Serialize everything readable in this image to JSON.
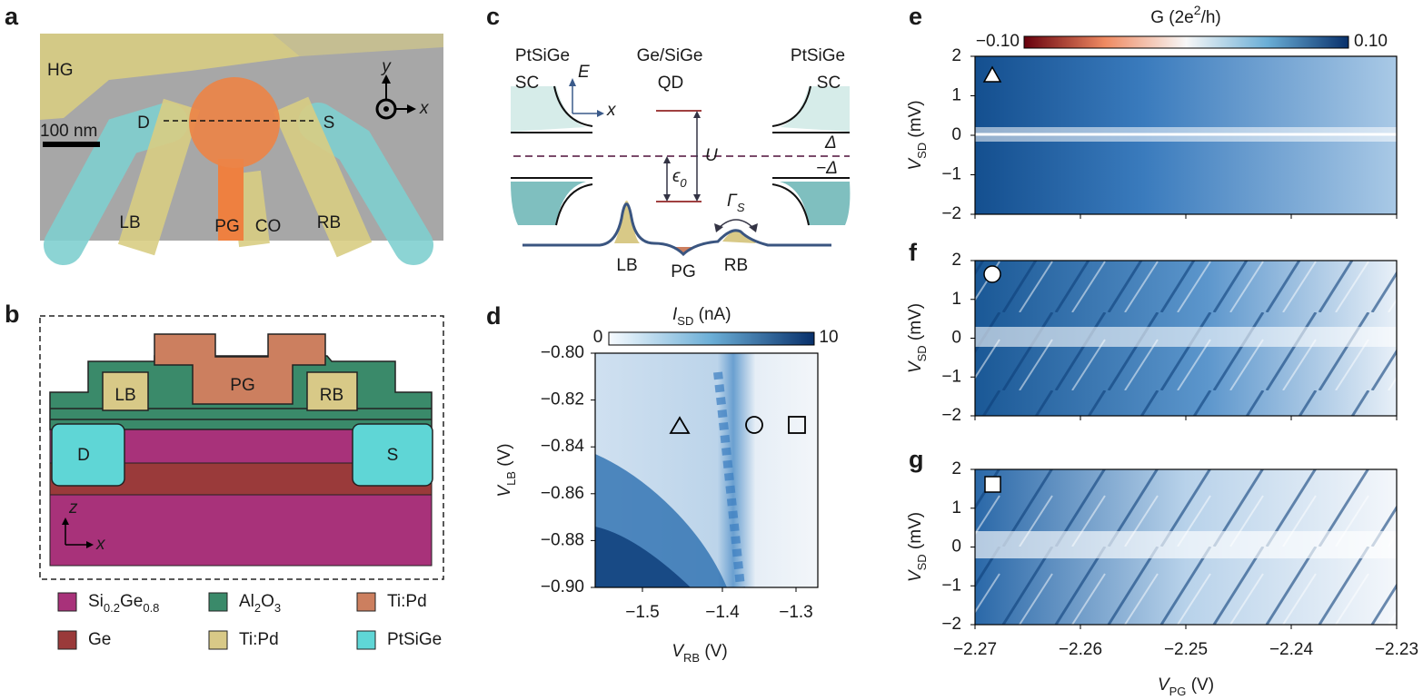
{
  "panel_letters": [
    "a",
    "b",
    "c",
    "d",
    "e",
    "f",
    "g"
  ],
  "a": {
    "labels": {
      "hg": "HG",
      "d": "D",
      "s": "S",
      "lb": "LB",
      "pg": "PG",
      "co": "CO",
      "rb": "RB"
    },
    "scale_bar": "100 nm",
    "axis_y": "y",
    "axis_x": "x"
  },
  "b": {
    "gates": {
      "pg": "PG",
      "lb": "LB",
      "rb": "RB",
      "d": "D",
      "s": "S"
    },
    "axis_z": "z",
    "axis_x": "x",
    "legend": [
      {
        "parts": [
          "Si",
          "0.2",
          "Ge",
          "0.8"
        ],
        "color": "#a8327a"
      },
      {
        "parts": [
          "Al",
          "2",
          "O",
          "3"
        ],
        "color": "#3a8a6a"
      },
      {
        "parts": [
          "Ti:Pd"
        ],
        "color": "#cc7f5f"
      },
      {
        "parts": [
          "Ge"
        ],
        "color": "#9a3a3a"
      },
      {
        "parts": [
          "Ti:Pd"
        ],
        "color": "#d8c987"
      },
      {
        "parts": [
          "PtSiGe"
        ],
        "color": "#5fd6d6"
      }
    ]
  },
  "c": {
    "left": "PtSiGe",
    "middle": "Ge/SiGe",
    "right": "PtSiGe",
    "sc_left": "SC",
    "qd": "QD",
    "sc_right": "SC",
    "axis_e": "E",
    "axis_x": "x",
    "delta": "Δ",
    "minus_delta": "−Δ",
    "u": "U",
    "epsilon": [
      "ϵ",
      "0"
    ],
    "gamma": [
      "Γ",
      "S"
    ],
    "lb": "LB",
    "pg": "PG",
    "rb": "RB"
  },
  "d": {
    "colorbar_title": [
      "I",
      "SD",
      " (nA)"
    ],
    "colorbar_ticks": [
      "0",
      "10"
    ],
    "yticks": [
      "−0.80",
      "−0.82",
      "−0.84",
      "−0.86",
      "−0.88",
      "−0.90"
    ],
    "xticks": [
      "−1.5",
      "−1.4",
      "−1.3"
    ],
    "ylabel": [
      "V",
      "LB",
      " (V)"
    ],
    "xlabel": [
      "V",
      "RB",
      " (V)"
    ]
  },
  "e": {
    "colorbar_title": {
      "pre": "G (2e",
      "sup": "2",
      "post": "/h)"
    },
    "colorbar_ticks": [
      "−0.10",
      "0.10"
    ],
    "yticks": [
      "2",
      "1",
      "0",
      "−1",
      "−2"
    ],
    "ylabel": [
      "V",
      "SD",
      " (mV)"
    ]
  },
  "f": {
    "yticks": [
      "2",
      "1",
      "0",
      "−1",
      "−2"
    ],
    "ylabel": [
      "V",
      "SD",
      " (mV)"
    ]
  },
  "g": {
    "yticks": [
      "2",
      "1",
      "0",
      "−1",
      "−2"
    ],
    "ylabel": [
      "V",
      "SD",
      " (mV)"
    ],
    "xticks": [
      "−2.27",
      "−2.26",
      "−2.25",
      "−2.24",
      "−2.23"
    ],
    "xlabel": [
      "V",
      "PG",
      " (V)"
    ]
  }
}
